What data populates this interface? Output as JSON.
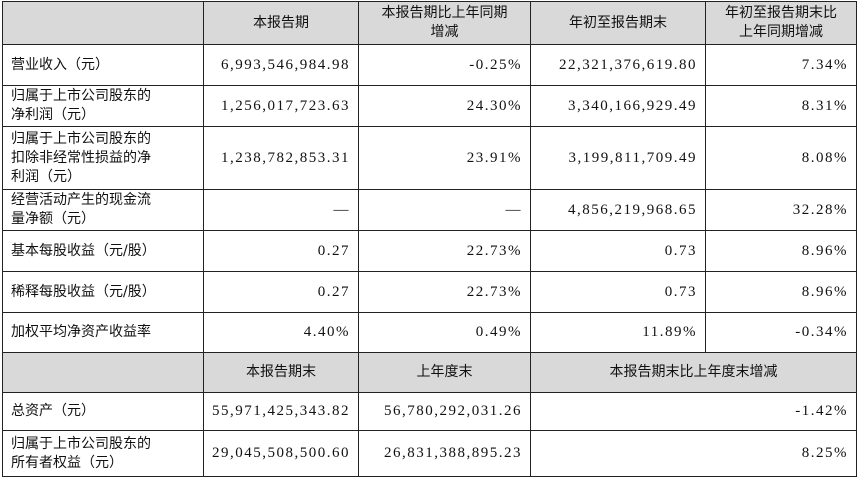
{
  "table": {
    "header": [
      [
        "本报告期"
      ],
      [
        "本报告期比上年同期",
        "增减"
      ],
      [
        "年初至报告期末"
      ],
      [
        "年初至报告期末比",
        "上年同期增减"
      ]
    ],
    "rows": [
      {
        "label": [
          "营业收入（元）"
        ],
        "cells": [
          "6,993,546,984.98",
          "-0.25%",
          "22,321,376,619.80",
          "7.34%"
        ]
      },
      {
        "label": [
          "归属于上市公司股东的",
          "净利润（元）"
        ],
        "cells": [
          "1,256,017,723.63",
          "24.30%",
          "3,340,166,929.49",
          "8.31%"
        ]
      },
      {
        "label": [
          "归属于上市公司股东的",
          "扣除非经常性损益的净",
          "利润（元）"
        ],
        "cells": [
          "1,238,782,853.31",
          "23.91%",
          "3,199,811,709.49",
          "8.08%"
        ]
      },
      {
        "label": [
          "经营活动产生的现金流",
          "量净额（元）"
        ],
        "cells": [
          "—",
          "—",
          "4,856,219,968.65",
          "32.28%"
        ]
      },
      {
        "label": [
          "基本每股收益（元/股）"
        ],
        "cells": [
          "0.27",
          "22.73%",
          "0.73",
          "8.96%"
        ]
      },
      {
        "label": [
          "稀释每股收益（元/股）"
        ],
        "cells": [
          "0.27",
          "22.73%",
          "0.73",
          "8.96%"
        ]
      },
      {
        "label": [
          "加权平均净资产收益率"
        ],
        "cells": [
          "4.40%",
          "0.49%",
          "11.89%",
          "-0.34%"
        ]
      }
    ],
    "header2": [
      "本报告期末",
      "上年度末",
      "本报告期末比上年度末增减"
    ],
    "rows2": [
      {
        "label": [
          "总资产（元）"
        ],
        "cells": [
          "55,971,425,343.82",
          "56,780,292,031.26",
          "-1.42%"
        ]
      },
      {
        "label": [
          "归属于上市公司股东的",
          "所有者权益（元）"
        ],
        "cells": [
          "29,045,508,500.60",
          "26,831,388,895.23",
          "8.25%"
        ]
      }
    ]
  }
}
